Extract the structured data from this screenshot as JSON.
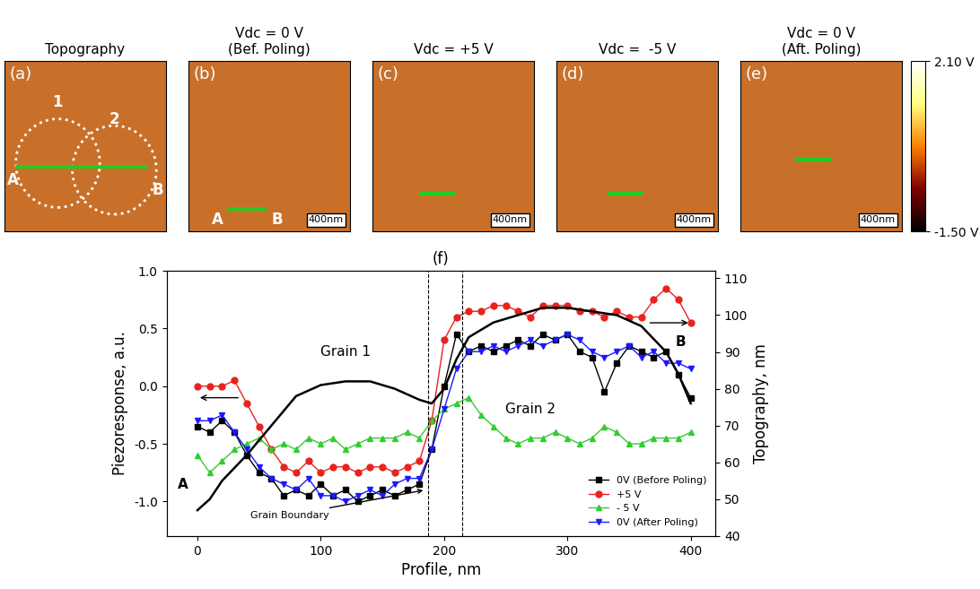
{
  "panels": [
    {
      "label": "(a)",
      "title": "Topography",
      "marks": [
        "1",
        "2",
        "A",
        "B"
      ]
    },
    {
      "label": "(b)",
      "title": "Vdc = 0 V\n(Bef. Poling)",
      "marks": [
        "A",
        "B"
      ],
      "scale": "400nm"
    },
    {
      "label": "(c)",
      "title": "Vdc = +5 V",
      "marks": [],
      "scale": "400nm"
    },
    {
      "label": "(d)",
      "title": "Vdc =  -5 V",
      "marks": [],
      "scale": "400nm"
    },
    {
      "label": "(e)",
      "title": "Vdc = 0 V\n(Aft. Poling)",
      "marks": [],
      "scale": "400nm"
    }
  ],
  "colorbar": {
    "range": [
      -1.5,
      2.1
    ],
    "ticks": [
      {
        "value": 2.1,
        "label": "2.10 V"
      },
      {
        "value": -1.5,
        "label": "-1.50 V"
      }
    ]
  },
  "chart_data": {
    "type": "line",
    "title": "(f)",
    "x_label": "Profile, nm",
    "y_label": "Piezoresponse, a.u.",
    "y2_label": "Topography, nm",
    "xlim": [
      -25,
      420
    ],
    "xticks": [
      0,
      100,
      200,
      300,
      400
    ],
    "ylim": [
      -1.3,
      1.0
    ],
    "yticks": [
      -1.0,
      -0.5,
      0.0,
      0.5,
      1.0
    ],
    "y2lim": [
      40,
      112
    ],
    "y2ticks": [
      40,
      50,
      60,
      70,
      80,
      90,
      100,
      110
    ],
    "legend": "lower right",
    "x": [
      0,
      10,
      20,
      30,
      40,
      50,
      60,
      70,
      80,
      90,
      100,
      110,
      120,
      130,
      140,
      150,
      160,
      170,
      180,
      190,
      200,
      210,
      220,
      230,
      240,
      250,
      260,
      270,
      280,
      290,
      300,
      310,
      320,
      330,
      340,
      350,
      360,
      370,
      380,
      390,
      400
    ],
    "series": [
      {
        "name": "0V (Before Poling)",
        "color": "#000000",
        "marker": "square",
        "line_style": "solid",
        "values": [
          -0.35,
          -0.4,
          -0.3,
          -0.4,
          -0.6,
          -0.75,
          -0.8,
          -0.95,
          -0.9,
          -0.95,
          -0.85,
          -0.95,
          -0.9,
          -1.0,
          -0.95,
          -0.9,
          -0.95,
          -0.9,
          -0.85,
          -0.55,
          0.0,
          0.45,
          0.3,
          0.35,
          0.3,
          0.35,
          0.4,
          0.35,
          0.45,
          0.4,
          0.45,
          0.3,
          0.25,
          -0.05,
          0.2,
          0.35,
          0.3,
          0.25,
          0.3,
          0.1,
          -0.1
        ]
      },
      {
        "name": "+5 V",
        "color": "#e8231f",
        "marker": "circle",
        "line_style": "solid",
        "values": [
          0.0,
          0.0,
          0.0,
          0.05,
          -0.15,
          -0.35,
          -0.55,
          -0.7,
          -0.75,
          -0.65,
          -0.75,
          -0.7,
          -0.7,
          -0.75,
          -0.7,
          -0.7,
          -0.75,
          -0.7,
          -0.65,
          -0.3,
          0.4,
          0.6,
          0.65,
          0.65,
          0.7,
          0.7,
          0.65,
          0.6,
          0.7,
          0.7,
          0.7,
          0.65,
          0.65,
          0.6,
          0.65,
          0.6,
          0.6,
          0.75,
          0.85,
          0.75,
          0.55
        ]
      },
      {
        "name": "- 5 V",
        "color": "#33cc33",
        "marker": "triangle_up",
        "line_style": "solid",
        "values": [
          -0.6,
          -0.75,
          -0.65,
          -0.55,
          -0.5,
          -0.45,
          -0.55,
          -0.5,
          -0.55,
          -0.45,
          -0.5,
          -0.45,
          -0.55,
          -0.5,
          -0.45,
          -0.45,
          -0.45,
          -0.4,
          -0.45,
          -0.3,
          -0.2,
          -0.15,
          -0.1,
          -0.25,
          -0.35,
          -0.45,
          -0.5,
          -0.45,
          -0.45,
          -0.4,
          -0.45,
          -0.5,
          -0.45,
          -0.35,
          -0.4,
          -0.5,
          -0.5,
          -0.45,
          -0.45,
          -0.45,
          -0.4
        ]
      },
      {
        "name": "0V (After Poling)",
        "color": "#1a1aff",
        "marker": "triangle_down",
        "line_style": "solid",
        "values": [
          -0.3,
          -0.3,
          -0.25,
          -0.4,
          -0.55,
          -0.7,
          -0.8,
          -0.85,
          -0.9,
          -0.8,
          -0.95,
          -0.95,
          -1.0,
          -0.95,
          -0.9,
          -0.95,
          -0.85,
          -0.8,
          -0.8,
          -0.55,
          -0.2,
          0.15,
          0.3,
          0.3,
          0.35,
          0.3,
          0.35,
          0.4,
          0.35,
          0.4,
          0.45,
          0.4,
          0.3,
          0.25,
          0.3,
          0.35,
          0.25,
          0.3,
          0.2,
          0.2,
          0.15
        ]
      },
      {
        "name": "Topography",
        "axis": "y2",
        "color": "#000000",
        "line_style": "solid",
        "x": [
          0,
          10,
          20,
          40,
          60,
          80,
          100,
          120,
          140,
          160,
          180,
          190,
          200,
          210,
          220,
          240,
          260,
          280,
          300,
          320,
          340,
          360,
          380,
          390,
          400
        ],
        "values": [
          47,
          50,
          55,
          62,
          70,
          78,
          81,
          82,
          82,
          80,
          77,
          76,
          80,
          88,
          94,
          98,
          100,
          102,
          102,
          101,
          100,
          97,
          90,
          84,
          76
        ]
      }
    ],
    "vlines": [
      187,
      215
    ],
    "annotations": [
      {
        "text": "Grain 1",
        "x": 120,
        "y": 0.3
      },
      {
        "text": "Grain 2",
        "x": 270,
        "y": -0.2
      },
      {
        "text": "A",
        "x": -12,
        "y": -0.85
      },
      {
        "text": "B",
        "x": 392,
        "y": 0.38
      }
    ],
    "arrow_note": {
      "text": "Grain Boundary",
      "x": 75,
      "y": -1.12,
      "to_x": 185,
      "to_y": -0.9
    }
  }
}
